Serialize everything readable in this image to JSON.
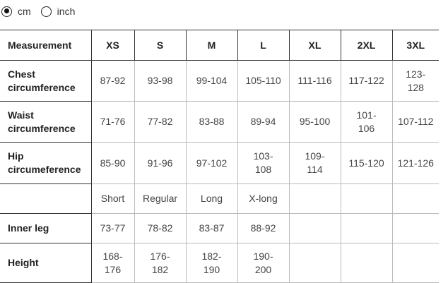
{
  "units": {
    "options": [
      {
        "label": "cm",
        "selected": true
      },
      {
        "label": "inch",
        "selected": false
      }
    ]
  },
  "table": {
    "headers": [
      "Measurement",
      "XS",
      "S",
      "M",
      "L",
      "XL",
      "2XL",
      "3XL"
    ],
    "rows": [
      {
        "label": "Chest circumference",
        "values": [
          "87-92",
          "93-98",
          "99-104",
          "105-110",
          "111-116",
          "117-122",
          "123-128"
        ]
      },
      {
        "label": "Waist circumference",
        "values": [
          "71-76",
          "77-82",
          "83-88",
          "89-94",
          "95-100",
          "101-106",
          "107-112"
        ]
      },
      {
        "label": "Hip circumeference",
        "values": [
          "85-90",
          "91-96",
          "97-102",
          "103-108",
          "109-114",
          "115-120",
          "121-126"
        ]
      },
      {
        "label": "",
        "values": [
          "Short",
          "Regular",
          "Long",
          "X-long",
          "",
          "",
          ""
        ]
      },
      {
        "label": "Inner leg",
        "values": [
          "73-77",
          "78-82",
          "83-87",
          "88-92",
          "",
          "",
          ""
        ]
      },
      {
        "label": "Height",
        "values": [
          "168-176",
          "176-182",
          "182-190",
          "190-200",
          "",
          "",
          ""
        ]
      }
    ]
  }
}
